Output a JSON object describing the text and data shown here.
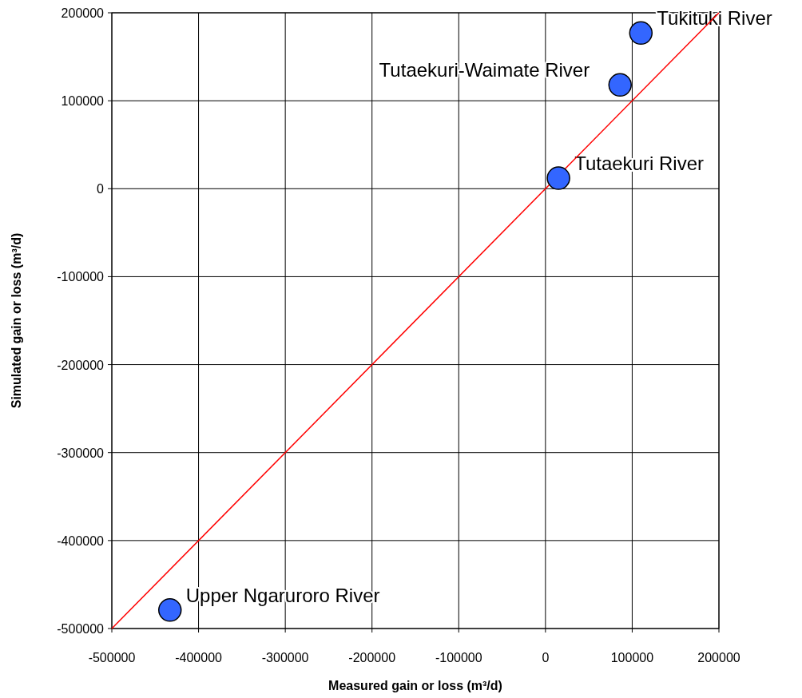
{
  "chart_data": {
    "type": "scatter",
    "xlabel": "Measured gain or loss (m³/d)",
    "ylabel": "Simulated gain or loss (m³/d)",
    "xlim": [
      -500000,
      200000
    ],
    "xticks": [
      -500000,
      -400000,
      -300000,
      -200000,
      -100000,
      0,
      100000,
      200000
    ],
    "ylim": [
      -500000,
      200000
    ],
    "yticks": [
      -500000,
      -400000,
      -300000,
      -200000,
      -100000,
      0,
      100000,
      200000
    ],
    "grid": true,
    "series": [
      {
        "marker": "circle",
        "color": "#3366ff",
        "x": [
          110000,
          86000,
          15000,
          -433000
        ],
        "values": [
          177000,
          118000,
          12000,
          -479000
        ]
      },
      {
        "type": "line",
        "marker": "none",
        "color": "#ff0000",
        "x": [
          -500000,
          200000
        ],
        "values": [
          -500000,
          200000
        ]
      }
    ],
    "annotations": [
      {
        "text": "Tukituki River",
        "x": 110000,
        "y": 177000
      },
      {
        "text": "Tutaekuri-Waimate River",
        "x": 86000,
        "y": 118000
      },
      {
        "text": "Tutaekuri River",
        "x": 15000,
        "y": 12000
      },
      {
        "text": "Upper Ngaruroro River",
        "x": -433000,
        "y": -479000
      }
    ]
  }
}
